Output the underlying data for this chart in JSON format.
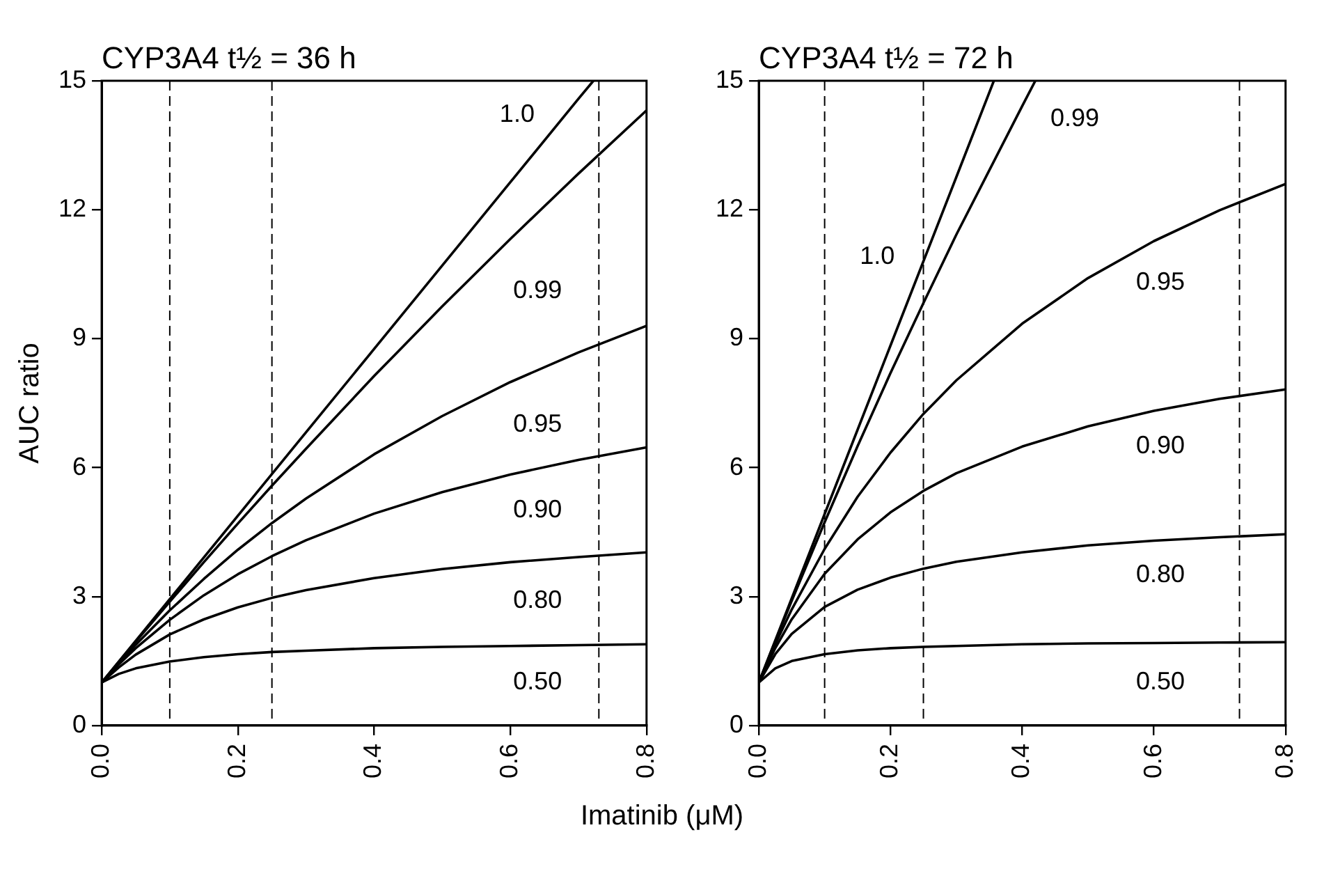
{
  "chart_data": [
    {
      "type": "line",
      "title": "CYP3A4 t½ = 36 h",
      "xlabel": "Imatinib (μM)",
      "ylabel": "AUC ratio",
      "xlim": [
        0,
        0.8
      ],
      "ylim": [
        0,
        15
      ],
      "xticks": [
        {
          "value": 0,
          "label": "0.0"
        },
        0.2,
        0.4,
        0.6,
        0.8
      ],
      "yticks": [
        0,
        3,
        6,
        9,
        12,
        15
      ],
      "grid": false,
      "legend": false,
      "marker": "none",
      "line_style": "solid",
      "x": [
        0,
        0.025,
        0.05,
        0.1,
        0.15,
        0.2,
        0.25,
        0.3,
        0.4,
        0.5,
        0.6,
        0.7,
        0.8
      ],
      "series": [
        {
          "name": "1.0",
          "color": "#000000",
          "x": [
            0,
            0.1,
            0.2,
            0.3,
            0.4,
            0.5,
            0.6,
            0.7,
            0.722
          ],
          "values": [
            1,
            2.94,
            4.88,
            6.82,
            8.76,
            10.7,
            12.64,
            14.58,
            15
          ]
        },
        {
          "name": "0.99",
          "color": "#000000",
          "values": [
            1,
            1.48,
            1.95,
            2.88,
            3.8,
            4.7,
            5.58,
            6.44,
            8.13,
            9.75,
            11.32,
            12.84,
            14.31
          ]
        },
        {
          "name": "0.95",
          "color": "#000000",
          "values": [
            1,
            1.45,
            1.88,
            2.68,
            3.41,
            4.09,
            4.71,
            5.28,
            6.31,
            7.2,
            7.99,
            8.68,
            9.3
          ]
        },
        {
          "name": "0.90",
          "color": "#000000",
          "values": [
            1,
            1.42,
            1.8,
            2.46,
            3.03,
            3.52,
            3.94,
            4.31,
            4.93,
            5.43,
            5.84,
            6.18,
            6.47
          ]
        },
        {
          "name": "0.80",
          "color": "#000000",
          "values": [
            1,
            1.35,
            1.65,
            2.12,
            2.47,
            2.75,
            2.97,
            3.15,
            3.43,
            3.64,
            3.8,
            3.92,
            4.03
          ]
        },
        {
          "name": "0.50",
          "color": "#000000",
          "values": [
            1,
            1.2,
            1.33,
            1.49,
            1.59,
            1.66,
            1.71,
            1.74,
            1.8,
            1.83,
            1.85,
            1.87,
            1.89
          ]
        }
      ],
      "ref_lines": [
        {
          "axis": "x",
          "value": 0.1,
          "color": "#000000",
          "line_style": "dashed"
        },
        {
          "axis": "x",
          "value": 0.25,
          "color": "#000000",
          "line_style": "dashed"
        },
        {
          "axis": "x",
          "value": 0.73,
          "color": "#000000",
          "line_style": "dashed"
        }
      ]
    },
    {
      "type": "line",
      "title": "CYP3A4 t½ = 72 h",
      "xlim": [
        0,
        0.8
      ],
      "ylim": [
        0,
        15
      ],
      "xticks": [
        {
          "value": 0,
          "label": "0.0"
        },
        0.2,
        0.4,
        0.6,
        0.8
      ],
      "yticks": [
        0,
        3,
        6,
        9,
        12,
        15
      ],
      "grid": false,
      "legend": false,
      "marker": "none",
      "line_style": "solid",
      "x": [
        0,
        0.025,
        0.05,
        0.1,
        0.15,
        0.2,
        0.25,
        0.3,
        0.4,
        0.5,
        0.6,
        0.7,
        0.8
      ],
      "series": [
        {
          "name": "1.0",
          "color": "#000000",
          "x": [
            0,
            0.1,
            0.2,
            0.3,
            0.357
          ],
          "values": [
            1,
            4.92,
            8.84,
            12.76,
            15
          ]
        },
        {
          "name": "0.99",
          "color": "#000000",
          "x": [
            0,
            0.025,
            0.05,
            0.1,
            0.15,
            0.2,
            0.25,
            0.3,
            0.4,
            0.42
          ],
          "values": [
            1,
            1.96,
            2.9,
            4.73,
            6.5,
            8.2,
            9.83,
            11.42,
            14.41,
            15
          ]
        },
        {
          "name": "0.95",
          "color": "#000000",
          "values": [
            1,
            1.89,
            2.7,
            4.11,
            5.32,
            6.35,
            7.25,
            8.03,
            9.35,
            10.41,
            11.27,
            11.99,
            12.6
          ]
        },
        {
          "name": "0.90",
          "color": "#000000",
          "values": [
            1,
            1.8,
            2.47,
            3.53,
            4.33,
            4.96,
            5.46,
            5.87,
            6.49,
            6.96,
            7.32,
            7.6,
            7.82
          ]
        },
        {
          "name": "0.80",
          "color": "#000000",
          "values": [
            1,
            1.66,
            2.13,
            2.76,
            3.16,
            3.44,
            3.65,
            3.81,
            4.03,
            4.19,
            4.3,
            4.38,
            4.45
          ]
        },
        {
          "name": "0.50",
          "color": "#000000",
          "values": [
            1,
            1.33,
            1.5,
            1.66,
            1.75,
            1.8,
            1.83,
            1.85,
            1.89,
            1.91,
            1.92,
            1.93,
            1.94
          ]
        }
      ],
      "ref_lines": [
        {
          "axis": "x",
          "value": 0.1,
          "color": "#000000",
          "line_style": "dashed"
        },
        {
          "axis": "x",
          "value": 0.25,
          "color": "#000000",
          "line_style": "dashed"
        },
        {
          "axis": "x",
          "value": 0.73,
          "color": "#000000",
          "line_style": "dashed"
        }
      ]
    }
  ]
}
